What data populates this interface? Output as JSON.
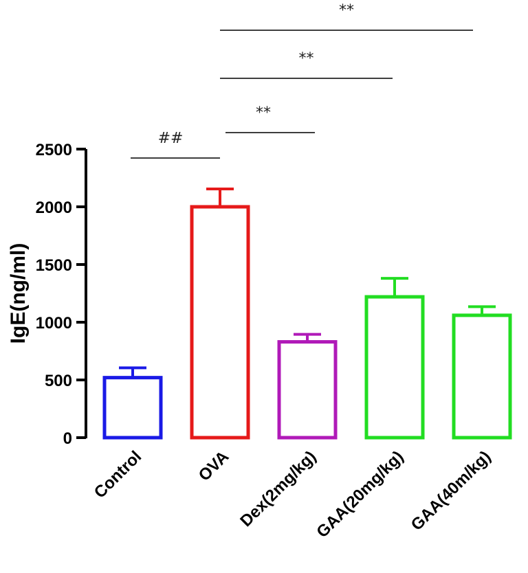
{
  "chart_data": {
    "type": "bar",
    "categories": [
      "Control",
      "OVA",
      "Dex(2mg/kg)",
      "GAA(20mg/kg)",
      "GAA(40m/kg)"
    ],
    "values": [
      520,
      2000,
      830,
      1220,
      1060
    ],
    "errors": [
      85,
      155,
      65,
      160,
      75
    ],
    "colors": [
      "#1a1ae6",
      "#e61a1a",
      "#b01ab8",
      "#22dd22",
      "#22dd22"
    ],
    "ylabel": "IgE(ng/ml)",
    "xlabel": "",
    "ylim": [
      0,
      2500
    ],
    "yticks": [
      0,
      500,
      1000,
      1500,
      2000,
      2500
    ],
    "grid": false,
    "significance": [
      {
        "from": 0,
        "to": 1,
        "label": "##"
      },
      {
        "from": 1,
        "to": 2,
        "label": "**"
      },
      {
        "from": 1,
        "to": 3,
        "label": "**"
      },
      {
        "from": 1,
        "to": 4,
        "label": "**"
      }
    ]
  }
}
